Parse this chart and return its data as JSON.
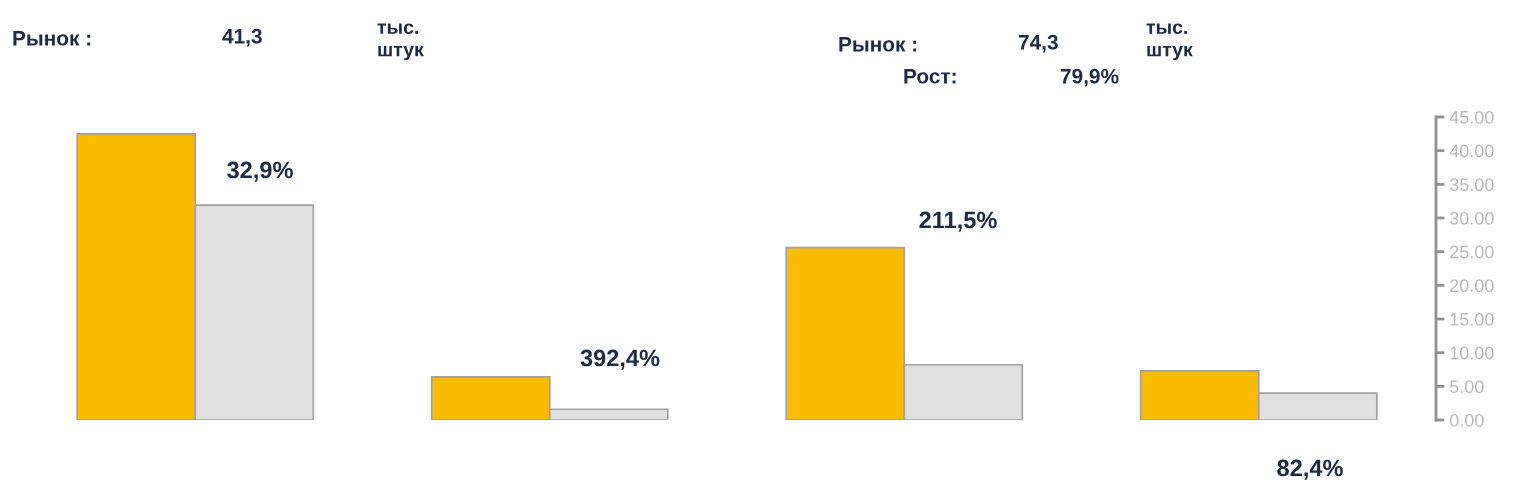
{
  "chart_data": {
    "type": "bar",
    "categories": [
      null,
      null,
      null,
      null
    ],
    "series": [
      {
        "color": "#fbbc00",
        "values": [
          42.5,
          6.4,
          25.6,
          7.3
        ]
      },
      {
        "color": "#e0e0e0",
        "values": [
          31.9,
          1.6,
          8.2,
          4.0
        ]
      }
    ],
    "ylim": [
      0,
      45
    ],
    "yticks": [
      {
        "value": 0,
        "label": "0.00"
      },
      {
        "value": 5,
        "label": "5.00"
      },
      {
        "value": 10,
        "label": "10.00"
      },
      {
        "value": 15,
        "label": "15.00"
      },
      {
        "value": 20,
        "label": "20.00"
      },
      {
        "value": 25,
        "label": "25.00"
      },
      {
        "value": 30,
        "label": "30.00"
      },
      {
        "value": 35,
        "label": "35.00"
      },
      {
        "value": 40,
        "label": "40.00"
      },
      {
        "value": 45,
        "label": "45.00"
      }
    ],
    "annotations": [
      "Рынок :",
      "41,3",
      "тыс.\nштук",
      "Рынок :",
      "74,3",
      "Рост:",
      "79,9%",
      "тыс.\nштук",
      "32,9%",
      "392,4%",
      "211,5%",
      "82,4%"
    ],
    "grid": false,
    "legend": false
  }
}
